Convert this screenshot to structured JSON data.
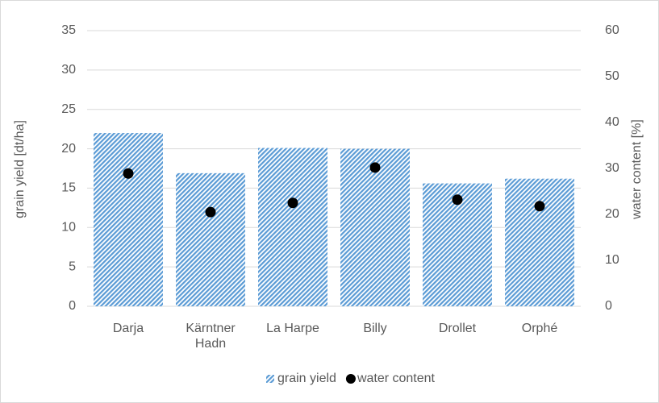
{
  "chart_data": {
    "type": "bar",
    "categories": [
      "Darja",
      "Kärntner Hadn",
      "La Harpe",
      "Billy",
      "Drollet",
      "Orphé"
    ],
    "series": [
      {
        "name": "grain yield",
        "color": "#5b9bd5",
        "values": [
          22.0,
          16.9,
          20.1,
          20.0,
          15.6,
          16.2
        ]
      },
      {
        "name": "water content",
        "color": "#000000",
        "type": "scatter",
        "axis": "y2",
        "values": [
          28.9,
          20.5,
          22.5,
          30.2,
          23.2,
          21.8
        ]
      }
    ],
    "ylabel": "grain yield [dt/ha]",
    "y2label": "water content [%]",
    "ylim": [
      0,
      35
    ],
    "yticks": [
      0,
      5,
      10,
      15,
      20,
      25,
      30,
      35
    ],
    "y2lim": [
      0,
      60
    ],
    "y2ticks": [
      0,
      10,
      20,
      30,
      40,
      50,
      60
    ],
    "grid": true,
    "legend": "bottom"
  }
}
